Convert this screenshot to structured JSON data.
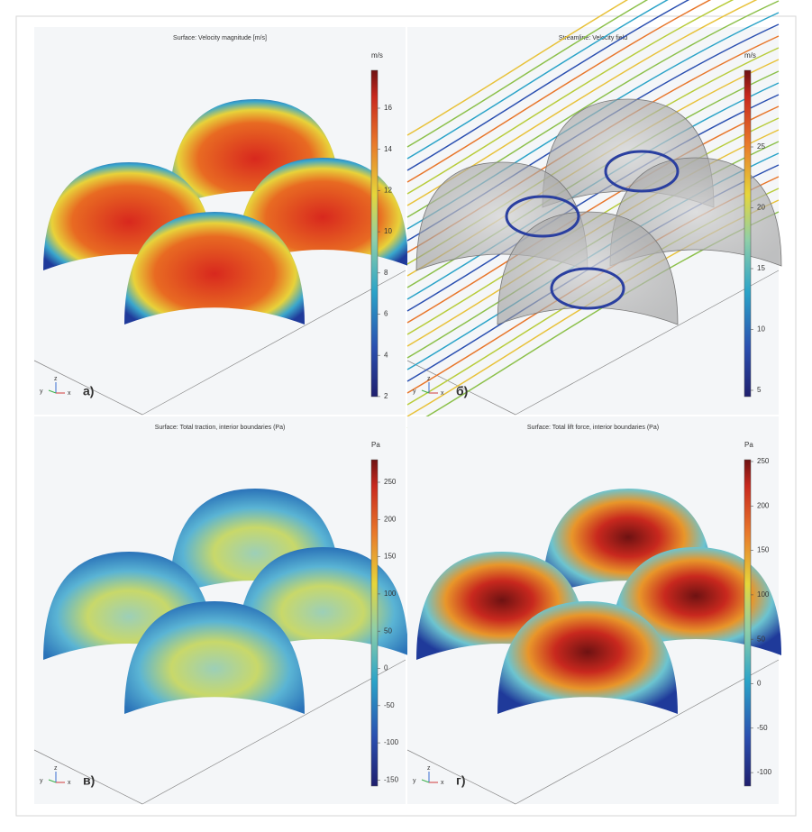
{
  "triad": {
    "x": "x",
    "y": "y",
    "z": "z"
  },
  "panels": [
    {
      "title": "Surface: Velocity magnitude [m/s]",
      "unit": "m/s",
      "ticks": [
        16,
        14,
        12,
        10,
        8,
        6,
        4,
        2
      ],
      "label": "а)"
    },
    {
      "title": "Streamline: Velocity field",
      "unit": "m/s",
      "ticks": [
        25,
        20,
        15,
        10,
        5
      ],
      "label": "б)"
    },
    {
      "title": "Surface: Total traction, interior boundaries (Pa)",
      "unit": "Pa",
      "ticks": [
        250,
        200,
        150,
        100,
        50,
        0,
        -50,
        -100,
        -150
      ],
      "label": "в)"
    },
    {
      "title": "Surface: Total lift force, interior boundaries (Pa)",
      "unit": "Pa",
      "ticks": [
        250,
        200,
        150,
        100,
        50,
        0,
        -50,
        -100
      ],
      "label": "г)"
    }
  ]
}
